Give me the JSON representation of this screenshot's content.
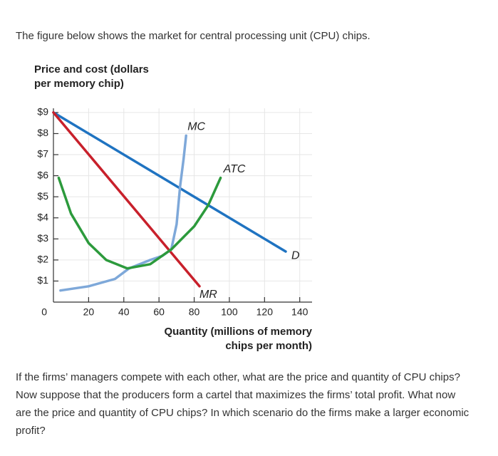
{
  "intro": "The figure below shows the market for central processing unit (CPU) chips.",
  "chart_data": {
    "type": "line",
    "ylabel": [
      "Price and cost (dollars",
      "per memory chip)"
    ],
    "xlabel": [
      "Quantity (millions of memory",
      "chips per month)"
    ],
    "xlim": [
      0,
      147
    ],
    "ylim": [
      0,
      9.2
    ],
    "xticks": [
      20,
      40,
      60,
      80,
      100,
      120,
      140
    ],
    "yticks": [
      0,
      {
        "value": 1,
        "label": "$1"
      },
      {
        "value": 2,
        "label": "$2"
      },
      {
        "value": 3,
        "label": "$3"
      },
      {
        "value": 4,
        "label": "$4"
      },
      {
        "value": 5,
        "label": "$5"
      },
      {
        "value": 6,
        "label": "$6"
      },
      {
        "value": 7,
        "label": "$7"
      },
      {
        "value": 8,
        "label": "$8"
      },
      {
        "value": 9,
        "label": "$9"
      }
    ],
    "grid": true,
    "series": [
      {
        "name": "D",
        "color": "#1f73c1",
        "x": [
          0,
          132
        ],
        "values": [
          9,
          2.4
        ]
      },
      {
        "name": "MR",
        "color": "#c8202b",
        "x": [
          0,
          83
        ],
        "values": [
          9,
          0.75
        ]
      },
      {
        "name": "MC",
        "color": "#7ea8d9",
        "x": [
          4,
          20,
          35,
          43,
          55,
          62,
          67,
          70,
          72,
          74,
          75.4
        ],
        "values": [
          0.55,
          0.75,
          1.1,
          1.6,
          2.0,
          2.2,
          2.5,
          3.7,
          5.5,
          6.8,
          7.9
        ]
      },
      {
        "name": "ATC",
        "color": "#2c9a3c",
        "x": [
          3,
          10,
          20,
          30,
          42,
          55,
          67,
          80,
          88,
          95
        ],
        "values": [
          5.9,
          4.2,
          2.8,
          2.0,
          1.6,
          1.8,
          2.5,
          3.6,
          4.6,
          5.9
        ]
      }
    ]
  },
  "question": "If the firms’ managers compete with each other, what are the price and quantity of CPU chips? Now suppose that the producers form a cartel that maximizes the firms’ total profit. What now are the price and quantity of CPU chips? In which scenario do the firms make a larger economic profit?"
}
